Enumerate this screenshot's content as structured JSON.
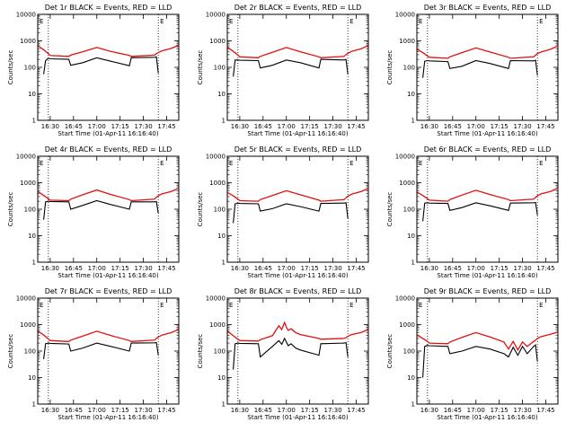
{
  "colors": {
    "events": "#000000",
    "lld": "#e01010",
    "axis": "#000000"
  },
  "chart_data": [
    {
      "type": "line",
      "title": "Det 1r BLACK = Events, RED = LLD",
      "ylabel": "Counts/sec",
      "xlabel": "Start Time (01-Apr-11 16:16:40)",
      "xticks": [
        "16:30",
        "16:45",
        "17:00",
        "17:15",
        "17:30",
        "17:45"
      ],
      "xlim": [
        16.366,
        17.88
      ],
      "ylim": [
        1,
        10000
      ],
      "yscale": "log",
      "yticks": [
        "1",
        "10",
        "100",
        "1000",
        "10000"
      ],
      "vlines": [
        16.48,
        17.66
      ],
      "marker": "E",
      "series": [
        {
          "x": [
            16.37,
            16.43,
            16.48,
            16.5,
            16.7,
            16.72,
            16.85,
            17.0,
            17.15,
            17.35,
            17.37,
            17.62,
            17.64,
            17.66,
            17.7,
            17.8,
            17.88
          ],
          "y": [
            640,
            460,
            330,
            280,
            260,
            290,
            390,
            560,
            400,
            280,
            260,
            290,
            330,
            360,
            420,
            520,
            680
          ]
        },
        {
          "x": [
            16.43,
            16.45,
            16.48,
            16.5,
            16.7,
            16.72,
            16.85,
            17.0,
            17.15,
            17.35,
            17.37,
            17.62,
            17.64,
            17.66
          ],
          "y": [
            55,
            180,
            220,
            210,
            200,
            120,
            150,
            230,
            170,
            115,
            230,
            240,
            250,
            60
          ]
        }
      ]
    },
    {
      "type": "line",
      "title": "Det 2r BLACK = Events, RED = LLD",
      "ylabel": "Counts/sec",
      "xlabel": "Start Time (01-Apr-11 16:16:40)",
      "xticks": [
        "16:30",
        "16:45",
        "17:00",
        "17:15",
        "17:30",
        "17:45"
      ],
      "xlim": [
        16.366,
        17.88
      ],
      "ylim": [
        1,
        10000
      ],
      "yscale": "log",
      "yticks": [
        "1",
        "10",
        "100",
        "1000",
        "10000"
      ],
      "vlines": [
        16.48,
        17.66
      ],
      "marker": "E",
      "series": [
        {
          "x": [
            16.37,
            16.43,
            16.48,
            16.5,
            16.7,
            16.72,
            16.85,
            17.0,
            17.15,
            17.35,
            17.37,
            17.62,
            17.64,
            17.66,
            17.7,
            17.8,
            17.88
          ],
          "y": [
            560,
            400,
            290,
            250,
            230,
            260,
            370,
            560,
            390,
            250,
            230,
            260,
            300,
            340,
            400,
            500,
            660
          ]
        },
        {
          "x": [
            16.43,
            16.45,
            16.48,
            16.5,
            16.7,
            16.72,
            16.85,
            17.0,
            17.15,
            17.35,
            17.37,
            17.62,
            17.64,
            17.66
          ],
          "y": [
            45,
            190,
            190,
            185,
            180,
            95,
            120,
            190,
            150,
            95,
            200,
            190,
            200,
            55
          ]
        }
      ]
    },
    {
      "type": "line",
      "title": "Det 3r BLACK = Events, RED = LLD",
      "ylabel": "Counts/sec",
      "xlabel": "Start Time (01-Apr-11 16:16:40)",
      "xticks": [
        "16:30",
        "16:45",
        "17:00",
        "17:15",
        "17:30",
        "17:45"
      ],
      "xlim": [
        16.366,
        17.88
      ],
      "ylim": [
        1,
        10000
      ],
      "yscale": "log",
      "yticks": [
        "1",
        "10",
        "100",
        "1000",
        "10000"
      ],
      "vlines": [
        16.48,
        17.66
      ],
      "marker": "E",
      "series": [
        {
          "x": [
            16.37,
            16.43,
            16.48,
            16.5,
            16.7,
            16.72,
            16.85,
            17.0,
            17.15,
            17.35,
            17.37,
            17.62,
            17.64,
            17.66,
            17.7,
            17.8,
            17.88
          ],
          "y": [
            480,
            360,
            270,
            240,
            220,
            250,
            360,
            540,
            380,
            240,
            220,
            250,
            290,
            330,
            380,
            480,
            640
          ]
        },
        {
          "x": [
            16.43,
            16.45,
            16.48,
            16.5,
            16.7,
            16.72,
            16.85,
            17.0,
            17.15,
            17.35,
            17.37,
            17.62,
            17.64,
            17.66
          ],
          "y": [
            40,
            170,
            180,
            175,
            165,
            90,
            110,
            180,
            140,
            90,
            180,
            175,
            185,
            50
          ]
        }
      ]
    },
    {
      "type": "line",
      "title": "Det 4r BLACK = Events, RED = LLD",
      "ylabel": "Counts/sec",
      "xlabel": "Start Time (01-Apr-11 16:16:40)",
      "xticks": [
        "16:30",
        "16:45",
        "17:00",
        "17:15",
        "17:30",
        "17:45"
      ],
      "xlim": [
        16.366,
        17.88
      ],
      "ylim": [
        1,
        10000
      ],
      "yscale": "log",
      "yticks": [
        "1",
        "10",
        "100",
        "1000",
        "10000"
      ],
      "vlines": [
        16.48,
        17.66
      ],
      "marker": "E",
      "series": [
        {
          "x": [
            16.37,
            16.43,
            16.48,
            16.5,
            16.7,
            16.72,
            16.85,
            17.0,
            17.15,
            17.35,
            17.37,
            17.62,
            17.64,
            17.66,
            17.7,
            17.8,
            17.88
          ],
          "y": [
            460,
            330,
            250,
            220,
            210,
            240,
            350,
            530,
            360,
            230,
            210,
            240,
            280,
            320,
            380,
            470,
            620
          ]
        },
        {
          "x": [
            16.43,
            16.45,
            16.48,
            16.5,
            16.7,
            16.72,
            16.85,
            17.0,
            17.15,
            17.35,
            17.37,
            17.62,
            17.64,
            17.66
          ],
          "y": [
            40,
            190,
            200,
            195,
            190,
            100,
            140,
            210,
            150,
            100,
            190,
            190,
            195,
            70
          ]
        }
      ]
    },
    {
      "type": "line",
      "title": "Det 5r BLACK = Events, RED = LLD",
      "ylabel": "Counts/sec",
      "xlabel": "Start Time (01-Apr-11 16:16:40)",
      "xticks": [
        "16:30",
        "16:45",
        "17:00",
        "17:15",
        "17:30",
        "17:45"
      ],
      "xlim": [
        16.366,
        17.88
      ],
      "ylim": [
        1,
        10000
      ],
      "yscale": "log",
      "yticks": [
        "1",
        "10",
        "100",
        "1000",
        "10000"
      ],
      "vlines": [
        16.48,
        17.66
      ],
      "marker": "E",
      "series": [
        {
          "x": [
            16.37,
            16.43,
            16.48,
            16.5,
            16.7,
            16.72,
            16.85,
            17.0,
            17.15,
            17.35,
            17.37,
            17.62,
            17.64,
            17.66,
            17.7,
            17.8,
            17.88
          ],
          "y": [
            420,
            320,
            240,
            210,
            200,
            230,
            330,
            500,
            350,
            220,
            200,
            230,
            270,
            310,
            370,
            460,
            600
          ]
        },
        {
          "x": [
            16.43,
            16.45,
            16.48,
            16.5,
            16.7,
            16.72,
            16.85,
            17.0,
            17.15,
            17.35,
            17.37,
            17.62,
            17.64,
            17.66
          ],
          "y": [
            30,
            160,
            170,
            165,
            160,
            85,
            105,
            160,
            125,
            85,
            165,
            170,
            175,
            45
          ]
        }
      ]
    },
    {
      "type": "line",
      "title": "Det 6r BLACK = Events, RED = LLD",
      "ylabel": "Counts/sec",
      "xlabel": "Start Time (01-Apr-11 16:16:40)",
      "xticks": [
        "16:30",
        "16:45",
        "17:00",
        "17:15",
        "17:30",
        "17:45"
      ],
      "xlim": [
        16.366,
        17.88
      ],
      "ylim": [
        1,
        10000
      ],
      "yscale": "log",
      "yticks": [
        "1",
        "10",
        "100",
        "1000",
        "10000"
      ],
      "vlines": [
        16.48,
        17.66
      ],
      "marker": "E",
      "series": [
        {
          "x": [
            16.37,
            16.43,
            16.48,
            16.5,
            16.7,
            16.72,
            16.85,
            17.0,
            17.15,
            17.35,
            17.37,
            17.62,
            17.64,
            17.66,
            17.7,
            17.8,
            17.88
          ],
          "y": [
            440,
            330,
            250,
            220,
            200,
            230,
            340,
            520,
            360,
            230,
            210,
            240,
            280,
            320,
            380,
            470,
            620
          ]
        },
        {
          "x": [
            16.43,
            16.45,
            16.48,
            16.5,
            16.7,
            16.72,
            16.85,
            17.0,
            17.15,
            17.35,
            17.37,
            17.62,
            17.64,
            17.66
          ],
          "y": [
            35,
            170,
            175,
            170,
            165,
            90,
            115,
            175,
            135,
            90,
            170,
            175,
            180,
            60
          ]
        }
      ]
    },
    {
      "type": "line",
      "title": "Det 7r BLACK = Events, RED = LLD",
      "ylabel": "Counts/sec",
      "xlabel": "Start Time (01-Apr-11 16:16:40)",
      "xticks": [
        "16:30",
        "16:45",
        "17:00",
        "17:15",
        "17:30",
        "17:45"
      ],
      "xlim": [
        16.366,
        17.88
      ],
      "ylim": [
        1,
        10000
      ],
      "yscale": "log",
      "yticks": [
        "1",
        "10",
        "100",
        "1000",
        "10000"
      ],
      "vlines": [
        16.48,
        17.66
      ],
      "marker": "E",
      "series": [
        {
          "x": [
            16.37,
            16.43,
            16.48,
            16.5,
            16.7,
            16.72,
            16.85,
            17.0,
            17.15,
            17.35,
            17.37,
            17.62,
            17.64,
            17.66,
            17.7,
            17.8,
            17.88
          ],
          "y": [
            560,
            400,
            290,
            250,
            230,
            260,
            370,
            560,
            390,
            250,
            230,
            260,
            300,
            340,
            400,
            500,
            660
          ]
        },
        {
          "x": [
            16.43,
            16.45,
            16.48,
            16.5,
            16.7,
            16.72,
            16.85,
            17.0,
            17.15,
            17.35,
            17.37,
            17.62,
            17.64,
            17.66
          ],
          "y": [
            50,
            190,
            200,
            195,
            185,
            100,
            130,
            200,
            150,
            100,
            200,
            205,
            210,
            70
          ]
        }
      ]
    },
    {
      "type": "line",
      "title": "Det 8r BLACK = Events, RED = LLD",
      "ylabel": "Counts/sec",
      "xlabel": "Start Time (01-Apr-11 16:16:40)",
      "xticks": [
        "16:30",
        "16:45",
        "17:00",
        "17:15",
        "17:30",
        "17:45"
      ],
      "xlim": [
        16.366,
        17.88
      ],
      "ylim": [
        1,
        10000
      ],
      "yscale": "log",
      "yticks": [
        "1",
        "10",
        "100",
        "1000",
        "10000"
      ],
      "vlines": [
        16.48,
        17.66
      ],
      "marker": "E",
      "series": [
        {
          "x": [
            16.37,
            16.43,
            16.48,
            16.5,
            16.7,
            16.72,
            16.85,
            16.92,
            16.95,
            16.98,
            17.0,
            17.02,
            17.05,
            17.1,
            17.15,
            17.35,
            17.37,
            17.62,
            17.64,
            17.66,
            17.7,
            17.8,
            17.88
          ],
          "y": [
            560,
            380,
            280,
            250,
            240,
            270,
            380,
            900,
            650,
            1200,
            800,
            600,
            700,
            500,
            420,
            300,
            280,
            300,
            320,
            360,
            420,
            500,
            650
          ]
        },
        {
          "x": [
            16.43,
            16.45,
            16.48,
            16.5,
            16.7,
            16.72,
            16.85,
            16.92,
            16.95,
            16.98,
            17.0,
            17.02,
            17.05,
            17.1,
            17.15,
            17.35,
            17.37,
            17.62,
            17.64,
            17.66
          ],
          "y": [
            20,
            190,
            200,
            195,
            190,
            60,
            150,
            250,
            180,
            300,
            220,
            160,
            190,
            130,
            110,
            70,
            190,
            200,
            210,
            60
          ]
        }
      ]
    },
    {
      "type": "line",
      "title": "Det 9r BLACK = Events, RED = LLD",
      "ylabel": "Counts/sec",
      "xlabel": "Start Time (01-Apr-11 16:16:40)",
      "xticks": [
        "16:30",
        "16:45",
        "17:00",
        "17:15",
        "17:30",
        "17:45"
      ],
      "xlim": [
        16.366,
        17.88
      ],
      "ylim": [
        1,
        10000
      ],
      "yscale": "log",
      "yticks": [
        "1",
        "10",
        "100",
        "1000",
        "10000"
      ],
      "vlines": [
        16.48,
        17.66
      ],
      "marker": "E",
      "series": [
        {
          "x": [
            16.37,
            16.43,
            16.48,
            16.5,
            16.7,
            16.72,
            16.85,
            17.0,
            17.15,
            17.3,
            17.35,
            17.4,
            17.45,
            17.5,
            17.55,
            17.62,
            17.64,
            17.66,
            17.7,
            17.8,
            17.88
          ],
          "y": [
            400,
            300,
            230,
            200,
            190,
            220,
            330,
            500,
            340,
            220,
            120,
            230,
            110,
            220,
            150,
            230,
            260,
            300,
            350,
            430,
            520
          ]
        },
        {
          "x": [
            16.43,
            16.45,
            16.48,
            16.5,
            16.7,
            16.72,
            16.85,
            17.0,
            17.15,
            17.3,
            17.35,
            17.4,
            17.45,
            17.5,
            17.55,
            17.62,
            17.64,
            17.66
          ],
          "y": [
            10,
            150,
            165,
            160,
            150,
            80,
            100,
            150,
            120,
            80,
            60,
            140,
            70,
            150,
            80,
            150,
            170,
            40
          ]
        }
      ]
    }
  ]
}
